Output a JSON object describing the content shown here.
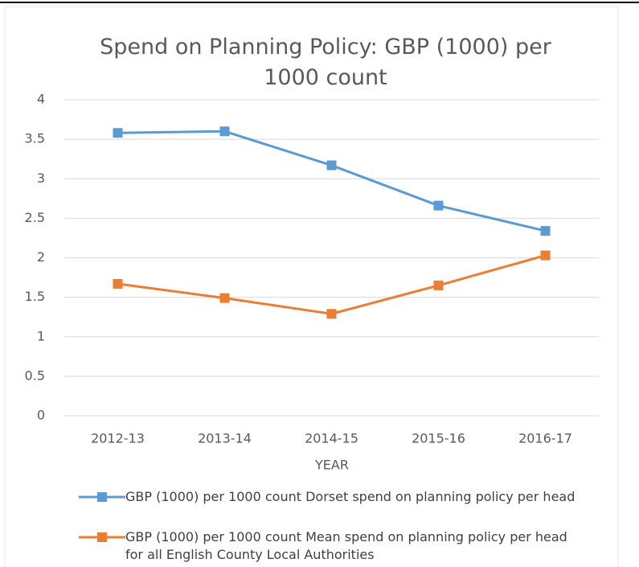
{
  "chart_data": {
    "type": "line",
    "title": "Spend on Planning Policy: GBP (1000) per 1000 count",
    "x_label": "YEAR",
    "categories": [
      "2012-13",
      "2013-14",
      "2014-15",
      "2015-16",
      "2016-17"
    ],
    "series": [
      {
        "name": "GBP (1000) per 1000 count Dorset spend on planning policy per head",
        "color": "#5b9bd5",
        "values": [
          3.58,
          3.6,
          3.17,
          2.66,
          2.34
        ]
      },
      {
        "name": "GBP (1000) per 1000 count Mean spend on planning policy per head for all English County Local Authorities",
        "color": "#ed7d31",
        "values": [
          1.67,
          1.49,
          1.29,
          1.65,
          2.03
        ]
      }
    ],
    "ylim": [
      0,
      4
    ],
    "yticks": [
      0,
      0.5,
      1,
      1.5,
      2,
      2.5,
      3,
      3.5,
      4
    ],
    "grid": true,
    "legend": "bottom"
  }
}
